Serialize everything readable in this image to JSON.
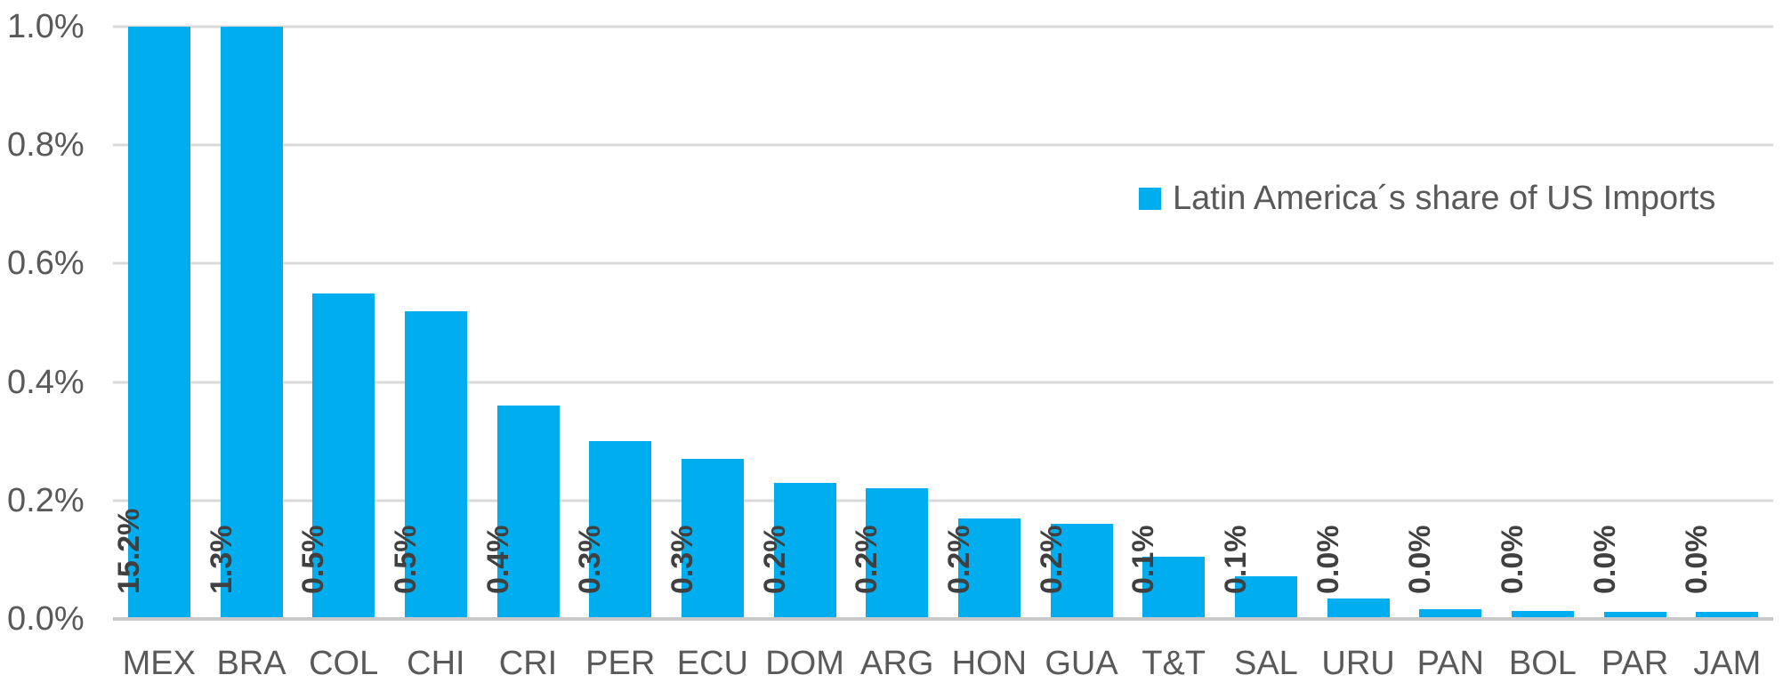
{
  "chart_data": {
    "type": "bar",
    "title": "",
    "xlabel": "",
    "ylabel": "",
    "categories": [
      "MEX",
      "BRA",
      "COL",
      "CHI",
      "CRI",
      "PER",
      "ECU",
      "DOM",
      "ARG",
      "HON",
      "GUA",
      "T&T",
      "SAL",
      "URU",
      "PAN",
      "BOL",
      "PAR",
      "JAM"
    ],
    "series": [
      {
        "name": "Latin America´s share of US Imports",
        "bar_labels": [
          "15.2%",
          "1.3%",
          "0.5%",
          "0.5%",
          "0.4%",
          "0.3%",
          "0.3%",
          "0.2%",
          "0.2%",
          "0.2%",
          "0.2%",
          "0.1%",
          "0.1%",
          "0.0%",
          "0.0%",
          "0.0%",
          "0.0%",
          "0.0%"
        ],
        "plotted_values": [
          1.0,
          1.0,
          0.55,
          0.52,
          0.36,
          0.3,
          0.27,
          0.23,
          0.22,
          0.17,
          0.16,
          0.105,
          0.072,
          0.035,
          0.017,
          0.014,
          0.012,
          0.012
        ]
      }
    ],
    "clipped_at_axis_max": [
      "MEX",
      "BRA"
    ],
    "ylim": [
      0,
      1.0
    ],
    "ytick_labels": [
      "1.0%",
      "0.8%",
      "0.6%",
      "0.4%",
      "0.2%",
      "0.0%"
    ],
    "grid": "horizontal",
    "legend": {
      "label": "Latin America´s share of US Imports",
      "position": "inside-top-right"
    },
    "colors": {
      "bar": "#00AEEF",
      "grid_line": "#D9D9D9",
      "axis_line": "#C9C9C9",
      "tick_text": "#595959",
      "bar_label_text": "#404040",
      "legend_text": "#595959",
      "background": "#FFFFFF"
    }
  }
}
